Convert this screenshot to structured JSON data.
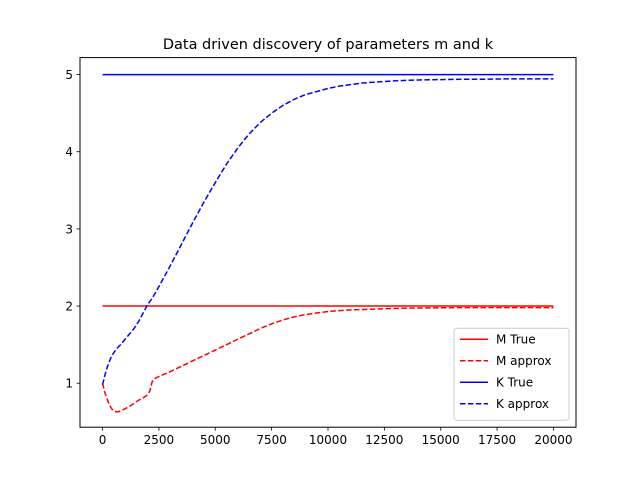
{
  "chart_data": {
    "type": "line",
    "title": "Data driven discovery of parameters m and k",
    "xlabel": "",
    "ylabel": "",
    "xlim": [
      -1000,
      21000
    ],
    "ylim": [
      0.43,
      5.22
    ],
    "xticks": [
      0,
      2500,
      5000,
      7500,
      10000,
      12500,
      15000,
      17500,
      20000
    ],
    "yticks": [
      1,
      2,
      3,
      4,
      5
    ],
    "grid": false,
    "legend": "lower right",
    "series": [
      {
        "name": "M True",
        "color": "#ff0000",
        "style": "solid",
        "x": [
          0,
          20000
        ],
        "y": [
          2.0,
          2.0
        ]
      },
      {
        "name": "M approx",
        "color": "#ff0000",
        "style": "dashed",
        "x": [
          0,
          100,
          200,
          300,
          400,
          500,
          600,
          700,
          800,
          1000,
          1200,
          1400,
          1600,
          1800,
          2000,
          2100,
          2200,
          2300,
          2600,
          3000,
          3500,
          4000,
          4500,
          5000,
          5500,
          6000,
          6500,
          7000,
          7500,
          8000,
          8500,
          9000,
          9500,
          10000,
          11000,
          12000,
          13000,
          14000,
          15000,
          16000,
          17000,
          18000,
          19000,
          20000
        ],
        "y": [
          1.0,
          0.88,
          0.8,
          0.72,
          0.67,
          0.64,
          0.63,
          0.63,
          0.64,
          0.67,
          0.7,
          0.74,
          0.78,
          0.81,
          0.85,
          0.9,
          1.02,
          1.06,
          1.1,
          1.15,
          1.22,
          1.29,
          1.36,
          1.43,
          1.5,
          1.57,
          1.64,
          1.71,
          1.77,
          1.82,
          1.86,
          1.89,
          1.91,
          1.93,
          1.95,
          1.96,
          1.97,
          1.975,
          1.978,
          1.98,
          1.98,
          1.98,
          1.98,
          1.98
        ]
      },
      {
        "name": "K True",
        "color": "#0000ff",
        "style": "solid",
        "x": [
          0,
          20000
        ],
        "y": [
          5.0,
          5.0
        ]
      },
      {
        "name": "K approx",
        "color": "#0000ff",
        "style": "dashed",
        "x": [
          0,
          100,
          200,
          300,
          400,
          600,
          800,
          1000,
          1200,
          1400,
          1600,
          1800,
          2000,
          2100,
          2200,
          2400,
          2700,
          3000,
          3500,
          4000,
          4500,
          5000,
          5500,
          6000,
          6500,
          7000,
          7500,
          8000,
          8500,
          9000,
          9500,
          10000,
          10500,
          11000,
          11500,
          12000,
          13000,
          14000,
          15000,
          16000,
          17000,
          18000,
          19000,
          20000
        ],
        "y": [
          0.98,
          1.1,
          1.2,
          1.28,
          1.35,
          1.44,
          1.5,
          1.57,
          1.64,
          1.71,
          1.8,
          1.91,
          2.02,
          2.06,
          2.1,
          2.2,
          2.36,
          2.52,
          2.8,
          3.08,
          3.35,
          3.6,
          3.84,
          4.05,
          4.23,
          4.38,
          4.5,
          4.6,
          4.68,
          4.74,
          4.78,
          4.82,
          4.85,
          4.87,
          4.89,
          4.9,
          4.92,
          4.93,
          4.935,
          4.94,
          4.94,
          4.945,
          4.945,
          4.945
        ]
      }
    ]
  }
}
